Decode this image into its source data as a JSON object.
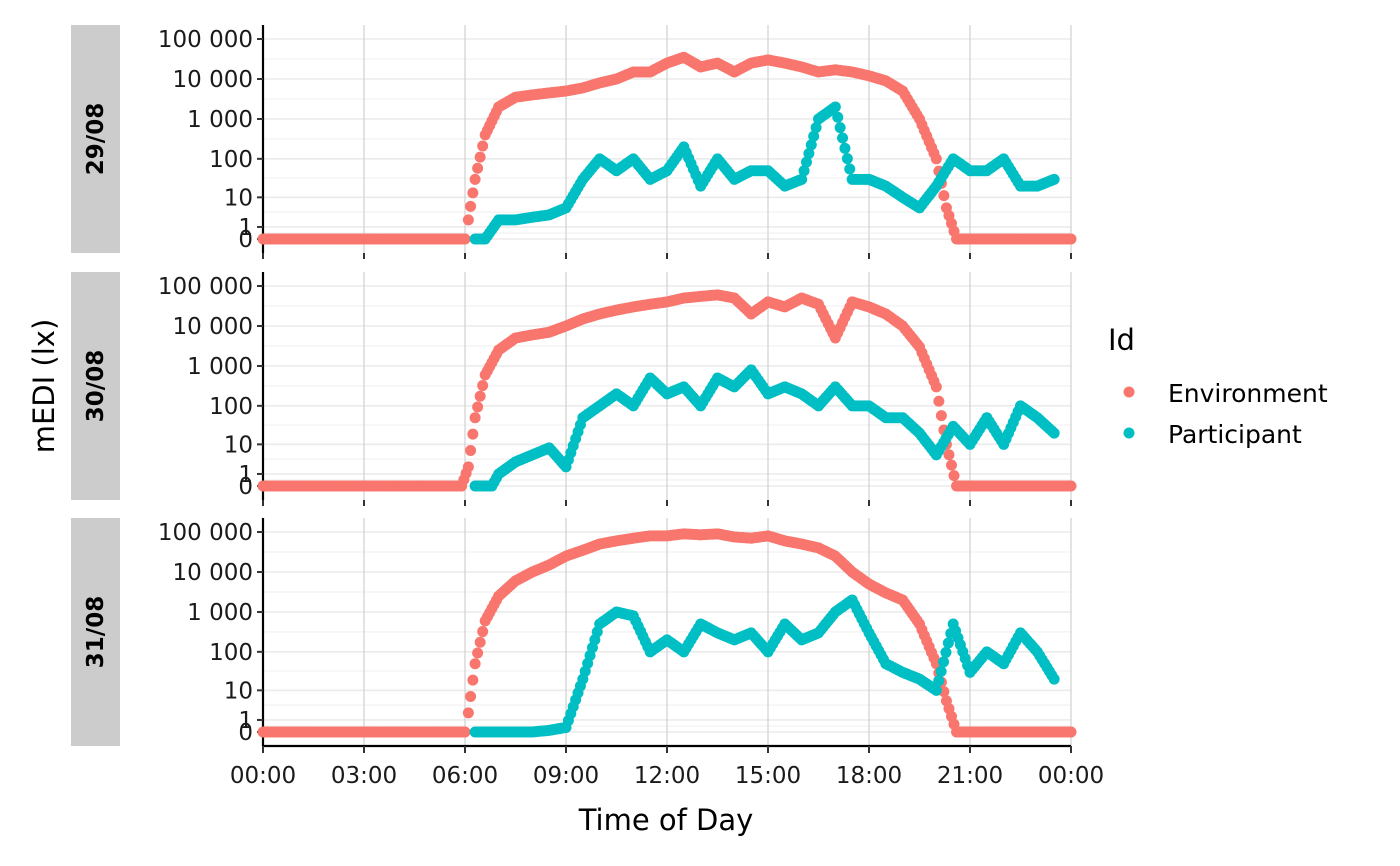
{
  "chart_data": {
    "type": "scatter",
    "xlabel": "Time of Day",
    "ylabel": "mEDI (lx)",
    "x_ticks": [
      "00:00",
      "03:00",
      "06:00",
      "09:00",
      "12:00",
      "15:00",
      "18:00",
      "21:00",
      "00:00"
    ],
    "x_range_hours": [
      0,
      24
    ],
    "y_scale": "symlog",
    "y_ticks": [
      "0",
      "1",
      "10",
      "100",
      "1 000",
      "10 000",
      "100 000"
    ],
    "y_tick_values": [
      0,
      1,
      10,
      100,
      1000,
      10000,
      100000
    ],
    "grid": true,
    "legend": {
      "title": "Id",
      "position": "right",
      "entries": [
        {
          "name": "Environment",
          "color": "#F8766D"
        },
        {
          "name": "Participant",
          "color": "#00BFC4"
        }
      ]
    },
    "panels": [
      {
        "label": "29/08",
        "series": [
          {
            "name": "Environment",
            "points": [
              [
                0,
                0
              ],
              [
                3,
                0
              ],
              [
                6.0,
                0
              ],
              [
                6.1,
                2
              ],
              [
                6.3,
                30
              ],
              [
                6.6,
                400
              ],
              [
                7.0,
                2000
              ],
              [
                7.5,
                3500
              ],
              [
                8,
                4000
              ],
              [
                8.5,
                4500
              ],
              [
                9,
                5000
              ],
              [
                9.5,
                6000
              ],
              [
                10,
                8000
              ],
              [
                10.5,
                10000
              ],
              [
                11,
                15000
              ],
              [
                11.5,
                15000
              ],
              [
                12,
                25000
              ],
              [
                12.5,
                35000
              ],
              [
                13,
                20000
              ],
              [
                13.5,
                25000
              ],
              [
                14,
                15000
              ],
              [
                14.5,
                25000
              ],
              [
                15,
                30000
              ],
              [
                15.5,
                25000
              ],
              [
                16,
                20000
              ],
              [
                16.5,
                15000
              ],
              [
                17,
                17000
              ],
              [
                17.5,
                15000
              ],
              [
                18,
                12000
              ],
              [
                18.5,
                9000
              ],
              [
                19,
                5000
              ],
              [
                19.5,
                1000
              ],
              [
                20,
                100
              ],
              [
                20.3,
                5
              ],
              [
                20.6,
                0
              ],
              [
                21,
                0
              ],
              [
                24,
                0
              ]
            ]
          },
          {
            "name": "Participant",
            "points": [
              [
                6.3,
                0
              ],
              [
                6.6,
                0
              ],
              [
                7.0,
                2
              ],
              [
                7.5,
                2
              ],
              [
                8.0,
                2.5
              ],
              [
                8.5,
                3
              ],
              [
                9.0,
                5
              ],
              [
                9.5,
                30
              ],
              [
                10,
                100
              ],
              [
                10.5,
                50
              ],
              [
                11,
                100
              ],
              [
                11.5,
                30
              ],
              [
                12,
                50
              ],
              [
                12.5,
                200
              ],
              [
                13,
                20
              ],
              [
                13.5,
                100
              ],
              [
                14,
                30
              ],
              [
                14.5,
                50
              ],
              [
                15,
                50
              ],
              [
                15.5,
                20
              ],
              [
                16,
                30
              ],
              [
                16.5,
                1000
              ],
              [
                17,
                2000
              ],
              [
                17.5,
                30
              ],
              [
                18,
                30
              ],
              [
                18.5,
                20
              ],
              [
                19,
                10
              ],
              [
                19.5,
                5
              ],
              [
                20,
                20
              ],
              [
                20.5,
                100
              ],
              [
                21,
                50
              ],
              [
                21.5,
                50
              ],
              [
                22,
                100
              ],
              [
                22.5,
                20
              ],
              [
                23,
                20
              ],
              [
                23.5,
                30
              ]
            ]
          }
        ]
      },
      {
        "label": "30/08",
        "series": [
          {
            "name": "Environment",
            "points": [
              [
                0,
                0
              ],
              [
                3,
                0
              ],
              [
                5.9,
                0
              ],
              [
                6.1,
                2
              ],
              [
                6.3,
                50
              ],
              [
                6.6,
                600
              ],
              [
                7.0,
                2500
              ],
              [
                7.5,
                5000
              ],
              [
                8,
                6000
              ],
              [
                8.5,
                7000
              ],
              [
                9,
                10000
              ],
              [
                9.5,
                15000
              ],
              [
                10,
                20000
              ],
              [
                10.5,
                25000
              ],
              [
                11,
                30000
              ],
              [
                11.5,
                35000
              ],
              [
                12,
                40000
              ],
              [
                12.5,
                50000
              ],
              [
                13,
                55000
              ],
              [
                13.5,
                60000
              ],
              [
                14,
                50000
              ],
              [
                14.5,
                20000
              ],
              [
                15,
                40000
              ],
              [
                15.5,
                30000
              ],
              [
                16,
                50000
              ],
              [
                16.5,
                35000
              ],
              [
                17,
                5000
              ],
              [
                17.5,
                40000
              ],
              [
                18,
                30000
              ],
              [
                18.5,
                20000
              ],
              [
                19,
                10000
              ],
              [
                19.5,
                3000
              ],
              [
                20,
                300
              ],
              [
                20.3,
                10
              ],
              [
                20.6,
                0
              ],
              [
                21,
                0
              ],
              [
                24,
                0
              ]
            ]
          },
          {
            "name": "Participant",
            "points": [
              [
                6.3,
                0
              ],
              [
                6.8,
                0
              ],
              [
                7.0,
                1
              ],
              [
                7.5,
                3
              ],
              [
                8.0,
                5
              ],
              [
                8.5,
                8
              ],
              [
                9.0,
                2
              ],
              [
                9.5,
                50
              ],
              [
                10,
                100
              ],
              [
                10.5,
                200
              ],
              [
                11,
                100
              ],
              [
                11.5,
                500
              ],
              [
                12,
                200
              ],
              [
                12.5,
                300
              ],
              [
                13,
                100
              ],
              [
                13.5,
                500
              ],
              [
                14,
                300
              ],
              [
                14.5,
                800
              ],
              [
                15,
                200
              ],
              [
                15.5,
                300
              ],
              [
                16,
                200
              ],
              [
                16.5,
                100
              ],
              [
                17,
                300
              ],
              [
                17.5,
                100
              ],
              [
                18,
                100
              ],
              [
                18.5,
                50
              ],
              [
                19,
                50
              ],
              [
                19.5,
                20
              ],
              [
                20,
                5
              ],
              [
                20.5,
                30
              ],
              [
                21,
                10
              ],
              [
                21.5,
                50
              ],
              [
                22,
                10
              ],
              [
                22.5,
                100
              ],
              [
                23,
                50
              ],
              [
                23.5,
                20
              ]
            ]
          }
        ]
      },
      {
        "label": "31/08",
        "series": [
          {
            "name": "Environment",
            "points": [
              [
                0,
                0
              ],
              [
                3,
                0
              ],
              [
                6.0,
                0
              ],
              [
                6.1,
                2
              ],
              [
                6.3,
                50
              ],
              [
                6.6,
                600
              ],
              [
                7.0,
                2500
              ],
              [
                7.5,
                6000
              ],
              [
                8,
                10000
              ],
              [
                8.5,
                15000
              ],
              [
                9,
                25000
              ],
              [
                9.5,
                35000
              ],
              [
                10,
                50000
              ],
              [
                10.5,
                60000
              ],
              [
                11,
                70000
              ],
              [
                11.5,
                80000
              ],
              [
                12,
                80000
              ],
              [
                12.5,
                90000
              ],
              [
                13,
                85000
              ],
              [
                13.5,
                90000
              ],
              [
                14,
                75000
              ],
              [
                14.5,
                70000
              ],
              [
                15,
                80000
              ],
              [
                15.5,
                60000
              ],
              [
                16,
                50000
              ],
              [
                16.5,
                40000
              ],
              [
                17,
                25000
              ],
              [
                17.5,
                10000
              ],
              [
                18,
                5000
              ],
              [
                18.5,
                3000
              ],
              [
                19,
                2000
              ],
              [
                19.5,
                500
              ],
              [
                20,
                50
              ],
              [
                20.3,
                5
              ],
              [
                20.6,
                0
              ],
              [
                21,
                0
              ],
              [
                24,
                0
              ]
            ]
          },
          {
            "name": "Participant",
            "points": [
              [
                6.3,
                0
              ],
              [
                7,
                0
              ],
              [
                8,
                0
              ],
              [
                8.5,
                0.1
              ],
              [
                9,
                0.3
              ],
              [
                9.5,
                20
              ],
              [
                10,
                500
              ],
              [
                10.5,
                1000
              ],
              [
                11,
                800
              ],
              [
                11.5,
                100
              ],
              [
                12,
                200
              ],
              [
                12.5,
                100
              ],
              [
                13,
                500
              ],
              [
                13.5,
                300
              ],
              [
                14,
                200
              ],
              [
                14.5,
                300
              ],
              [
                15,
                100
              ],
              [
                15.5,
                500
              ],
              [
                16,
                200
              ],
              [
                16.5,
                300
              ],
              [
                17,
                1000
              ],
              [
                17.5,
                2000
              ],
              [
                18,
                300
              ],
              [
                18.5,
                50
              ],
              [
                19,
                30
              ],
              [
                19.5,
                20
              ],
              [
                20,
                10
              ],
              [
                20.5,
                500
              ],
              [
                21,
                30
              ],
              [
                21.5,
                100
              ],
              [
                22,
                50
              ],
              [
                22.5,
                300
              ],
              [
                23,
                100
              ],
              [
                23.5,
                20
              ]
            ]
          }
        ]
      }
    ]
  }
}
